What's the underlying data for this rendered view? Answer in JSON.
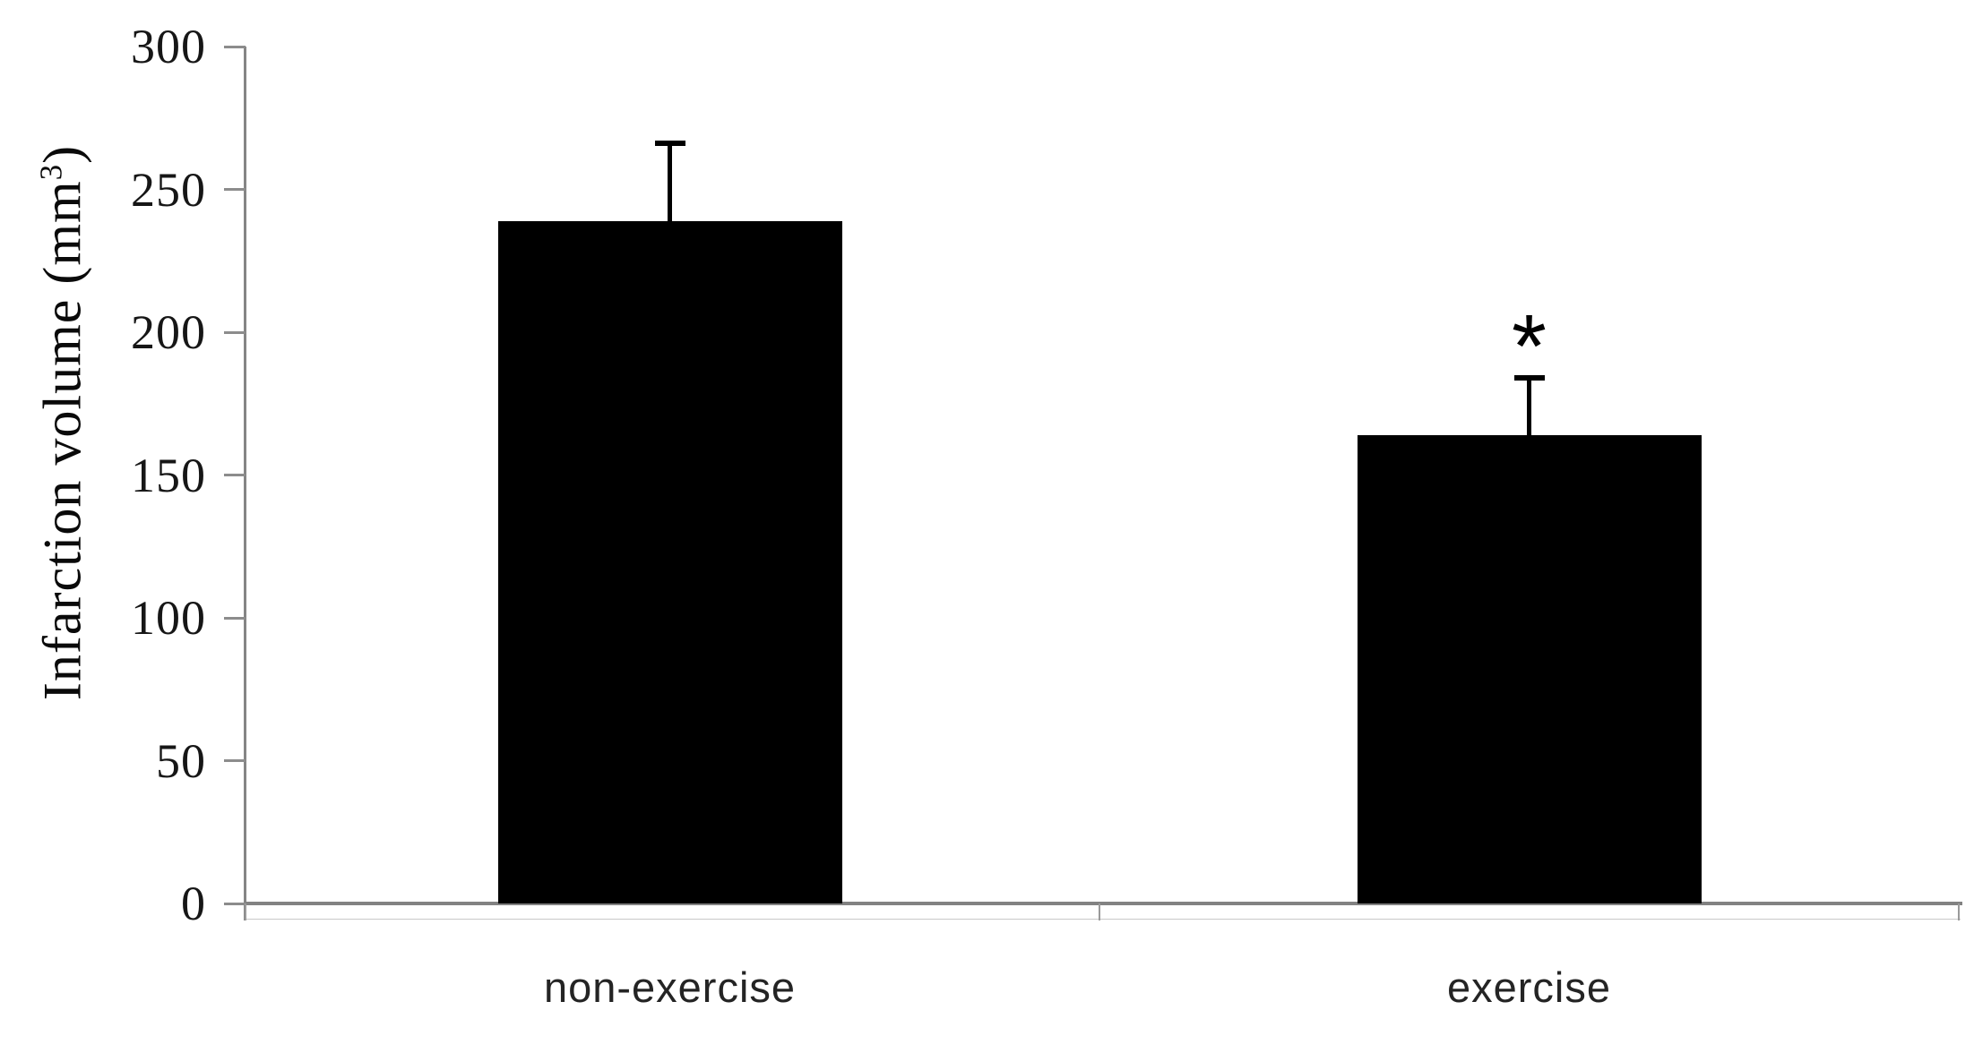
{
  "chart_data": {
    "type": "bar",
    "title": "",
    "ylabel": "Infarction volume (mm³)",
    "ylabel_parts": {
      "prefix": "Infarction volume (mm",
      "superscript": "3",
      "suffix": ")"
    },
    "xlabel": "",
    "categories": [
      "non-exercise",
      "exercise"
    ],
    "values": [
      239,
      164
    ],
    "error_plus": [
      27,
      20
    ],
    "yticks": [
      0,
      50,
      100,
      150,
      200,
      250,
      300
    ],
    "ylim": [
      0,
      300
    ],
    "grid": "off",
    "legend": "none",
    "bar_color": "#000000",
    "axis_color": "#828282",
    "annotations": [
      {
        "text": "*",
        "category_index": 1
      }
    ]
  }
}
